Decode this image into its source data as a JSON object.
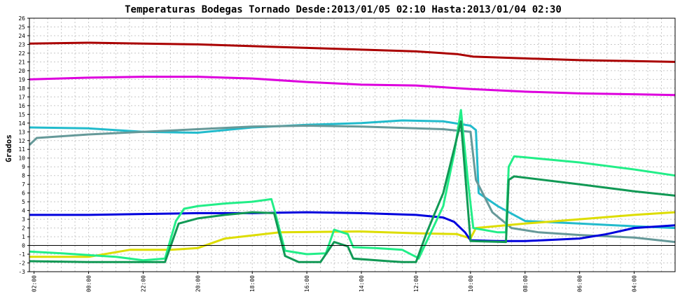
{
  "chart_data": {
    "type": "line",
    "title": "Temperaturas Bodegas Tornado Desde:2013/01/05 02:10 Hasta:2013/01/04 02:30",
    "ylabel": "Grados",
    "xlabel": "",
    "ylim": [
      -3,
      26
    ],
    "yticks": [
      -3,
      -2,
      -1,
      0,
      1,
      2,
      3,
      4,
      5,
      6,
      7,
      8,
      9,
      10,
      11,
      12,
      13,
      14,
      15,
      16,
      17,
      18,
      19,
      20,
      21,
      22,
      23,
      24,
      25,
      26
    ],
    "xlim": [
      26.17,
      2.5
    ],
    "xtick_labels": [
      "02:00",
      "00:00",
      "22:00",
      "20:00",
      "18:00",
      "16:00",
      "14:00",
      "12:00",
      "10:00",
      "08:00",
      "06:00",
      "04:00"
    ],
    "xtick_hours": [
      26,
      24,
      22,
      20,
      18,
      16,
      14,
      12,
      10,
      8,
      6,
      4
    ],
    "x_unit": "hours (24+ = Jan 05)",
    "grid": true,
    "zero_line": true,
    "series": [
      {
        "color": "#aa0000",
        "points": [
          [
            26.17,
            23.1
          ],
          [
            24,
            23.2
          ],
          [
            22,
            23.1
          ],
          [
            20,
            23.0
          ],
          [
            18,
            22.8
          ],
          [
            16,
            22.6
          ],
          [
            14,
            22.4
          ],
          [
            12,
            22.2
          ],
          [
            10.5,
            21.9
          ],
          [
            9.9,
            21.6
          ],
          [
            8,
            21.4
          ],
          [
            6,
            21.2
          ],
          [
            4,
            21.1
          ],
          [
            2.5,
            21.0
          ]
        ]
      },
      {
        "color": "#dd00dd",
        "points": [
          [
            26.17,
            19.0
          ],
          [
            24,
            19.2
          ],
          [
            22,
            19.3
          ],
          [
            20,
            19.3
          ],
          [
            18,
            19.1
          ],
          [
            16,
            18.7
          ],
          [
            14,
            18.4
          ],
          [
            12,
            18.3
          ],
          [
            10,
            17.9
          ],
          [
            8,
            17.6
          ],
          [
            6,
            17.4
          ],
          [
            4,
            17.3
          ],
          [
            2.5,
            17.2
          ]
        ]
      },
      {
        "color": "#22bbcc",
        "points": [
          [
            26.17,
            13.5
          ],
          [
            24,
            13.4
          ],
          [
            22,
            13.0
          ],
          [
            20,
            12.9
          ],
          [
            18,
            13.5
          ],
          [
            16,
            13.8
          ],
          [
            14,
            14.0
          ],
          [
            12.5,
            14.3
          ],
          [
            11,
            14.2
          ],
          [
            10,
            13.7
          ],
          [
            9.8,
            13.2
          ],
          [
            9.7,
            6.0
          ],
          [
            9,
            4.5
          ],
          [
            8,
            2.8
          ],
          [
            6,
            2.5
          ],
          [
            4,
            2.2
          ],
          [
            2.5,
            2.0
          ]
        ]
      },
      {
        "color": "#669999",
        "points": [
          [
            26.17,
            11.5
          ],
          [
            25.9,
            12.3
          ],
          [
            24,
            12.7
          ],
          [
            22,
            13.0
          ],
          [
            20,
            13.3
          ],
          [
            18,
            13.6
          ],
          [
            16,
            13.7
          ],
          [
            14,
            13.6
          ],
          [
            12,
            13.4
          ],
          [
            11,
            13.3
          ],
          [
            10,
            13.0
          ],
          [
            9.8,
            7.5
          ],
          [
            9.2,
            3.8
          ],
          [
            8.5,
            2.0
          ],
          [
            7.5,
            1.5
          ],
          [
            6,
            1.2
          ],
          [
            4,
            0.9
          ],
          [
            2.5,
            0.4
          ]
        ]
      },
      {
        "color": "#dddd00",
        "points": [
          [
            26.17,
            -1.3
          ],
          [
            24,
            -1.3
          ],
          [
            22.5,
            -0.5
          ],
          [
            21,
            -0.5
          ],
          [
            20,
            -0.3
          ],
          [
            19,
            0.8
          ],
          [
            17,
            1.5
          ],
          [
            14,
            1.6
          ],
          [
            12,
            1.4
          ],
          [
            10.5,
            1.3
          ],
          [
            10,
            0.8
          ],
          [
            9.8,
            2.0
          ],
          [
            8,
            2.5
          ],
          [
            6,
            3.0
          ],
          [
            4,
            3.5
          ],
          [
            2.5,
            3.8
          ]
        ]
      },
      {
        "color": "#0000dd",
        "points": [
          [
            26.17,
            3.5
          ],
          [
            24,
            3.5
          ],
          [
            22,
            3.6
          ],
          [
            20,
            3.7
          ],
          [
            18,
            3.7
          ],
          [
            16,
            3.8
          ],
          [
            14,
            3.7
          ],
          [
            12,
            3.5
          ],
          [
            11,
            3.2
          ],
          [
            10.6,
            2.7
          ],
          [
            10.2,
            1.5
          ],
          [
            10,
            0.6
          ],
          [
            9,
            0.5
          ],
          [
            8,
            0.5
          ],
          [
            6,
            0.8
          ],
          [
            5,
            1.3
          ],
          [
            4,
            2.0
          ],
          [
            2.5,
            2.3
          ]
        ]
      },
      {
        "color": "#22ee88",
        "points": [
          [
            26.17,
            -0.7
          ],
          [
            25,
            -0.9
          ],
          [
            24,
            -1.1
          ],
          [
            23,
            -1.3
          ],
          [
            22,
            -1.7
          ],
          [
            21.2,
            -1.5
          ],
          [
            20.8,
            2.8
          ],
          [
            20.5,
            4.2
          ],
          [
            20,
            4.5
          ],
          [
            19,
            4.8
          ],
          [
            18,
            5.0
          ],
          [
            17.3,
            5.3
          ],
          [
            17.2,
            4.2
          ],
          [
            16.8,
            -0.6
          ],
          [
            16,
            -1.0
          ],
          [
            15.3,
            -0.9
          ],
          [
            15,
            1.8
          ],
          [
            14.5,
            1.3
          ],
          [
            14.3,
            -0.2
          ],
          [
            13.5,
            -0.3
          ],
          [
            12.5,
            -0.5
          ],
          [
            12,
            -1.3
          ],
          [
            11.9,
            -1.5
          ],
          [
            11,
            4.5
          ],
          [
            10.6,
            10.5
          ],
          [
            10.35,
            15.5
          ],
          [
            10.1,
            7.5
          ],
          [
            9.9,
            2.0
          ],
          [
            9,
            1.5
          ],
          [
            8.7,
            1.5
          ],
          [
            8.6,
            9.0
          ],
          [
            8.4,
            10.2
          ],
          [
            6,
            9.5
          ],
          [
            4,
            8.7
          ],
          [
            2.5,
            8.0
          ]
        ]
      },
      {
        "color": "#119955",
        "points": [
          [
            26.17,
            -1.8
          ],
          [
            24,
            -1.9
          ],
          [
            22,
            -1.9
          ],
          [
            21.2,
            -1.9
          ],
          [
            20.7,
            2.5
          ],
          [
            20,
            3.1
          ],
          [
            19,
            3.5
          ],
          [
            18,
            3.8
          ],
          [
            17.2,
            3.7
          ],
          [
            16.8,
            -1.2
          ],
          [
            16.3,
            -1.9
          ],
          [
            15.5,
            -1.9
          ],
          [
            15,
            0.4
          ],
          [
            14.5,
            -0.1
          ],
          [
            14.3,
            -1.5
          ],
          [
            13,
            -1.8
          ],
          [
            12.5,
            -1.9
          ],
          [
            12,
            -1.9
          ],
          [
            11.6,
            1.5
          ],
          [
            11,
            6.0
          ],
          [
            10.35,
            14.2
          ],
          [
            10,
            0.5
          ],
          [
            8.7,
            0.4
          ],
          [
            8.6,
            7.5
          ],
          [
            8.4,
            7.9
          ],
          [
            6,
            7.0
          ],
          [
            4,
            6.2
          ],
          [
            2.5,
            5.7
          ]
        ]
      }
    ]
  }
}
